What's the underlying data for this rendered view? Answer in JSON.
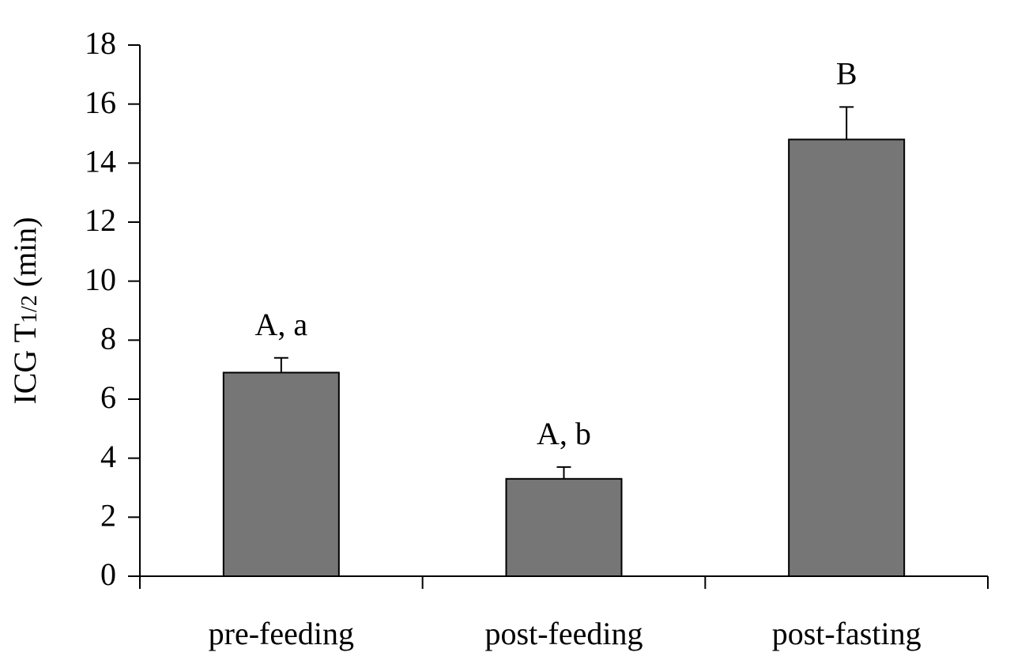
{
  "chart_data": {
    "type": "bar",
    "y_label": "ICG T",
    "y_label_subscript": "1/2",
    "y_label_unit": "(min)",
    "categories": [
      "pre-feeding",
      "post-feeding",
      "post-fasting"
    ],
    "values": [
      6.9,
      3.3,
      14.8
    ],
    "errors": [
      0.5,
      0.4,
      1.1
    ],
    "annotations": [
      "A, a",
      "A, b",
      "B"
    ],
    "color": "#767676",
    "ylim": [
      0,
      18
    ],
    "yticks": [
      0,
      2,
      4,
      6,
      8,
      10,
      12,
      14,
      16,
      18
    ],
    "grid": false
  }
}
